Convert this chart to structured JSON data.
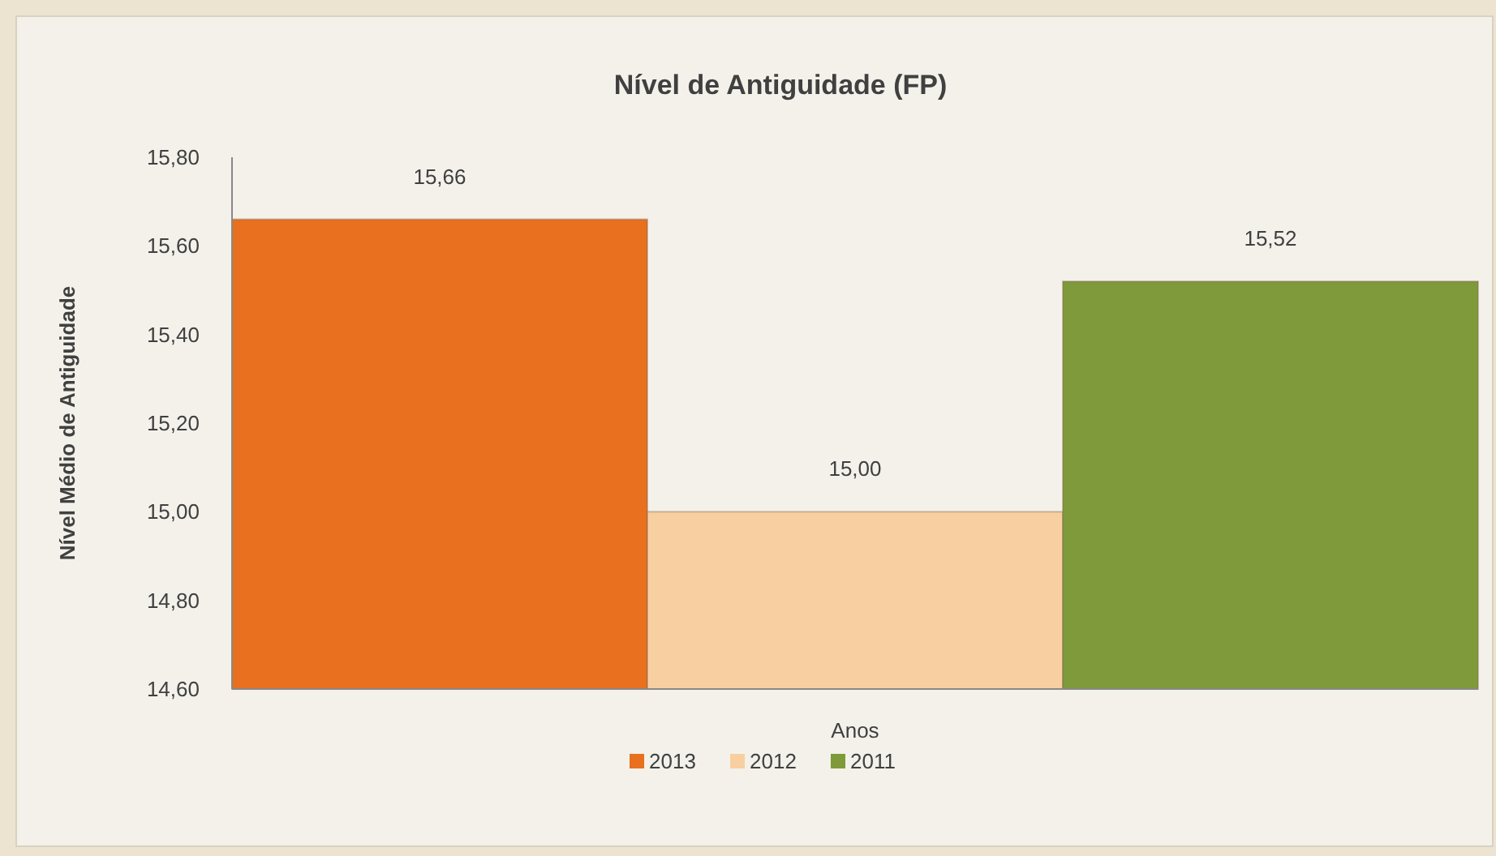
{
  "chart_data": {
    "type": "bar",
    "title": "Nível de Antiguidade (FP)",
    "xlabel": "Anos",
    "ylabel": "Nível Médio de Antiguidade",
    "categories": [
      null
    ],
    "series": [
      {
        "name": "2013",
        "color": "#e8701e",
        "values": [
          15.66
        ],
        "value_labels": [
          "15,66"
        ]
      },
      {
        "name": "2012",
        "color": "#f8cfa0",
        "values": [
          15.0
        ],
        "value_labels": [
          "15,00"
        ]
      },
      {
        "name": "2011",
        "color": "#7e9a3a",
        "values": [
          15.52
        ],
        "value_labels": [
          "15,52"
        ]
      }
    ],
    "ylim": [
      14.6,
      15.8
    ],
    "yticks": [
      {
        "value": 14.6,
        "label": "14,60"
      },
      {
        "value": 14.8,
        "label": "14,80"
      },
      {
        "value": 15.0,
        "label": "15,00"
      },
      {
        "value": 15.2,
        "label": "15,20"
      },
      {
        "value": 15.4,
        "label": "15,40"
      },
      {
        "value": 15.6,
        "label": "15,60"
      },
      {
        "value": 15.8,
        "label": "15,80"
      }
    ],
    "grid": false,
    "legend": "bottom"
  }
}
